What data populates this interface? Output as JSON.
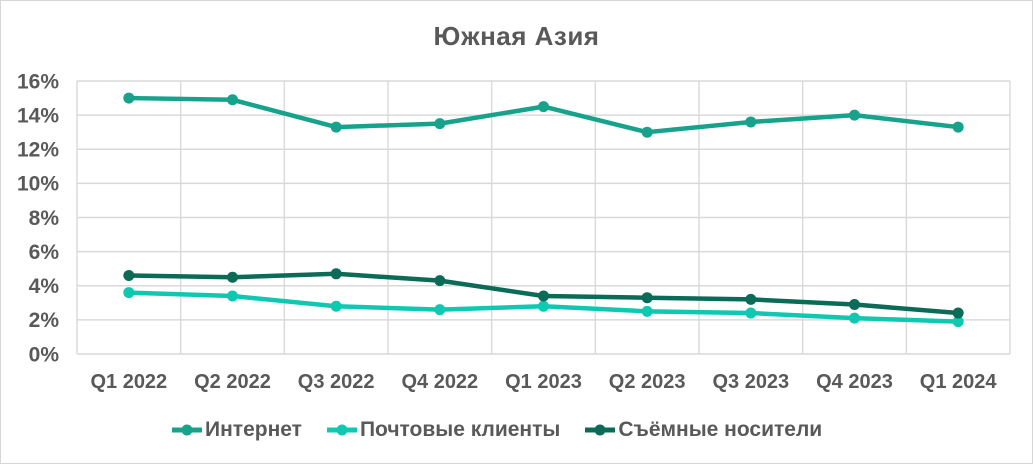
{
  "window": {
    "background": "#FFFFFF",
    "border_color": "#D6D6D6"
  },
  "chart_data": {
    "type": "line",
    "title": "Южная Азия",
    "categories": [
      "Q1 2022",
      "Q2 2022",
      "Q3 2022",
      "Q4 2022",
      "Q1 2023",
      "Q2 2023",
      "Q3 2023",
      "Q4 2023",
      "Q1 2024"
    ],
    "series": [
      {
        "name": "Интернет",
        "color": "#16A28B",
        "values": [
          15.0,
          14.9,
          13.3,
          13.5,
          14.5,
          13.0,
          13.6,
          14.0,
          13.3
        ]
      },
      {
        "name": "Почтовые клиенты",
        "color": "#0FC8B2",
        "values": [
          3.6,
          3.4,
          2.8,
          2.6,
          2.8,
          2.5,
          2.4,
          2.1,
          1.9
        ]
      },
      {
        "name": "Съёмные носители",
        "color": "#0B6B57",
        "values": [
          4.6,
          4.5,
          4.7,
          4.3,
          3.4,
          3.3,
          3.2,
          2.9,
          2.4
        ]
      }
    ],
    "y_axis": {
      "min": 0,
      "max": 16,
      "step": 2,
      "unit": "%",
      "tick_labels": [
        "16%",
        "14%",
        "12%",
        "10%",
        "8%",
        "6%",
        "4%",
        "2%",
        "0%"
      ]
    },
    "x_axis": {
      "tick_labels": [
        "Q1 2022",
        "Q2 2022",
        "Q3 2022",
        "Q4 2022",
        "Q1 2023",
        "Q2 2023",
        "Q3 2023",
        "Q4 2023",
        "Q1 2024"
      ]
    },
    "grid": true,
    "legend_position": "bottom",
    "styles": {
      "text_color": "#595959",
      "grid_color": "#D9D9D9",
      "line_width": 4.5,
      "marker_radius": 5.5
    }
  }
}
